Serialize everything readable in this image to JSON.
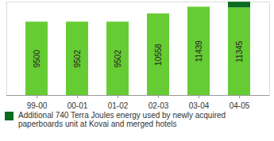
{
  "chart_data": {
    "type": "bar",
    "categories": [
      "99-00",
      "00-01",
      "01-02",
      "02-03",
      "03-04",
      "04-05"
    ],
    "series": [
      {
        "color": "#66cc33",
        "values": [
          9500,
          9502,
          9502,
          10558,
          11439,
          11345
        ]
      },
      {
        "name": "Additional 740 Terra Joules energy used by newly acquired paperboards unit at Kovai and merged hotels",
        "color": "#0b6b1f",
        "values": [
          null,
          null,
          null,
          null,
          null,
          740
        ]
      }
    ],
    "stacked": true,
    "data_labels": true,
    "tick_labels": "x",
    "ylim": [
      0,
      12100
    ],
    "yticks": [],
    "legend": "bottom"
  }
}
